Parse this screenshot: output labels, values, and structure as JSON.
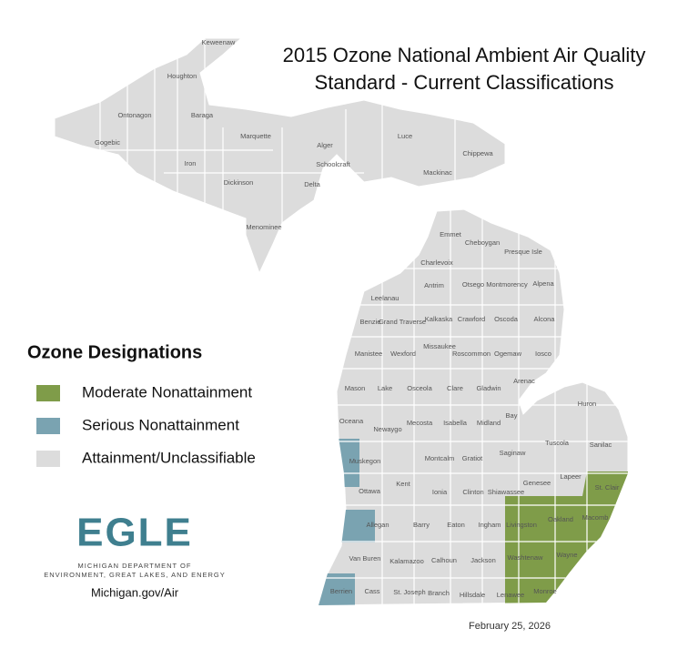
{
  "title_lines": [
    "2015 Ozone National Ambient Air Quality",
    "Standard - Current Classifications"
  ],
  "legend": {
    "title": "Ozone Designations",
    "items": [
      {
        "label": "Moderate Nonattainment",
        "color": "#7f9c49"
      },
      {
        "label": "Serious Nonattainment",
        "color": "#7aa3b1"
      },
      {
        "label": "Attainment/Unclassifiable",
        "color": "#dcdcdc"
      }
    ]
  },
  "logo": {
    "wordmark": "EGLE",
    "line1": "MICHIGAN DEPARTMENT OF",
    "line2": "ENVIRONMENT, GREAT LAKES, AND ENERGY"
  },
  "url": "Michigan.gov/Air",
  "date": "February 25, 2026",
  "counties": [
    "Keweenaw",
    "Houghton",
    "Ontonagon",
    "Baraga",
    "Gogebic",
    "Marquette",
    "Alger",
    "Luce",
    "Chippewa",
    "Iron",
    "Schoolcraft",
    "Mackinac",
    "Dickinson",
    "Delta",
    "Menominee",
    "Emmet",
    "Cheboygan",
    "Presque Isle",
    "Charlevoix",
    "Antrim",
    "Otsego",
    "Montmorency",
    "Alpena",
    "Leelanau",
    "Benzie",
    "Grand Traverse",
    "Kalkaska",
    "Crawford",
    "Oscoda",
    "Alcona",
    "Manistee",
    "Wexford",
    "Missaukee",
    "Roscommon",
    "Ogemaw",
    "Iosco",
    "Arenac",
    "Mason",
    "Lake",
    "Osceola",
    "Clare",
    "Gladwin",
    "Huron",
    "Bay",
    "Oceana",
    "Newaygo",
    "Mecosta",
    "Isabella",
    "Midland",
    "Tuscola",
    "Sanilac",
    "Saginaw",
    "Muskegon",
    "Montcalm",
    "Gratiot",
    "Lapeer",
    "St. Clair",
    "Genesee",
    "Ottawa",
    "Kent",
    "Ionia",
    "Clinton",
    "Shiawassee",
    "Oakland",
    "Macomb",
    "Livingston",
    "Allegan",
    "Barry",
    "Eaton",
    "Ingham",
    "Van Buren",
    "Kalamazoo",
    "Calhoun",
    "Jackson",
    "Washtenaw",
    "Wayne",
    "Berrien",
    "Cass",
    "St. Joseph",
    "Branch",
    "Hillsdale",
    "Lenawee",
    "Monroe"
  ]
}
